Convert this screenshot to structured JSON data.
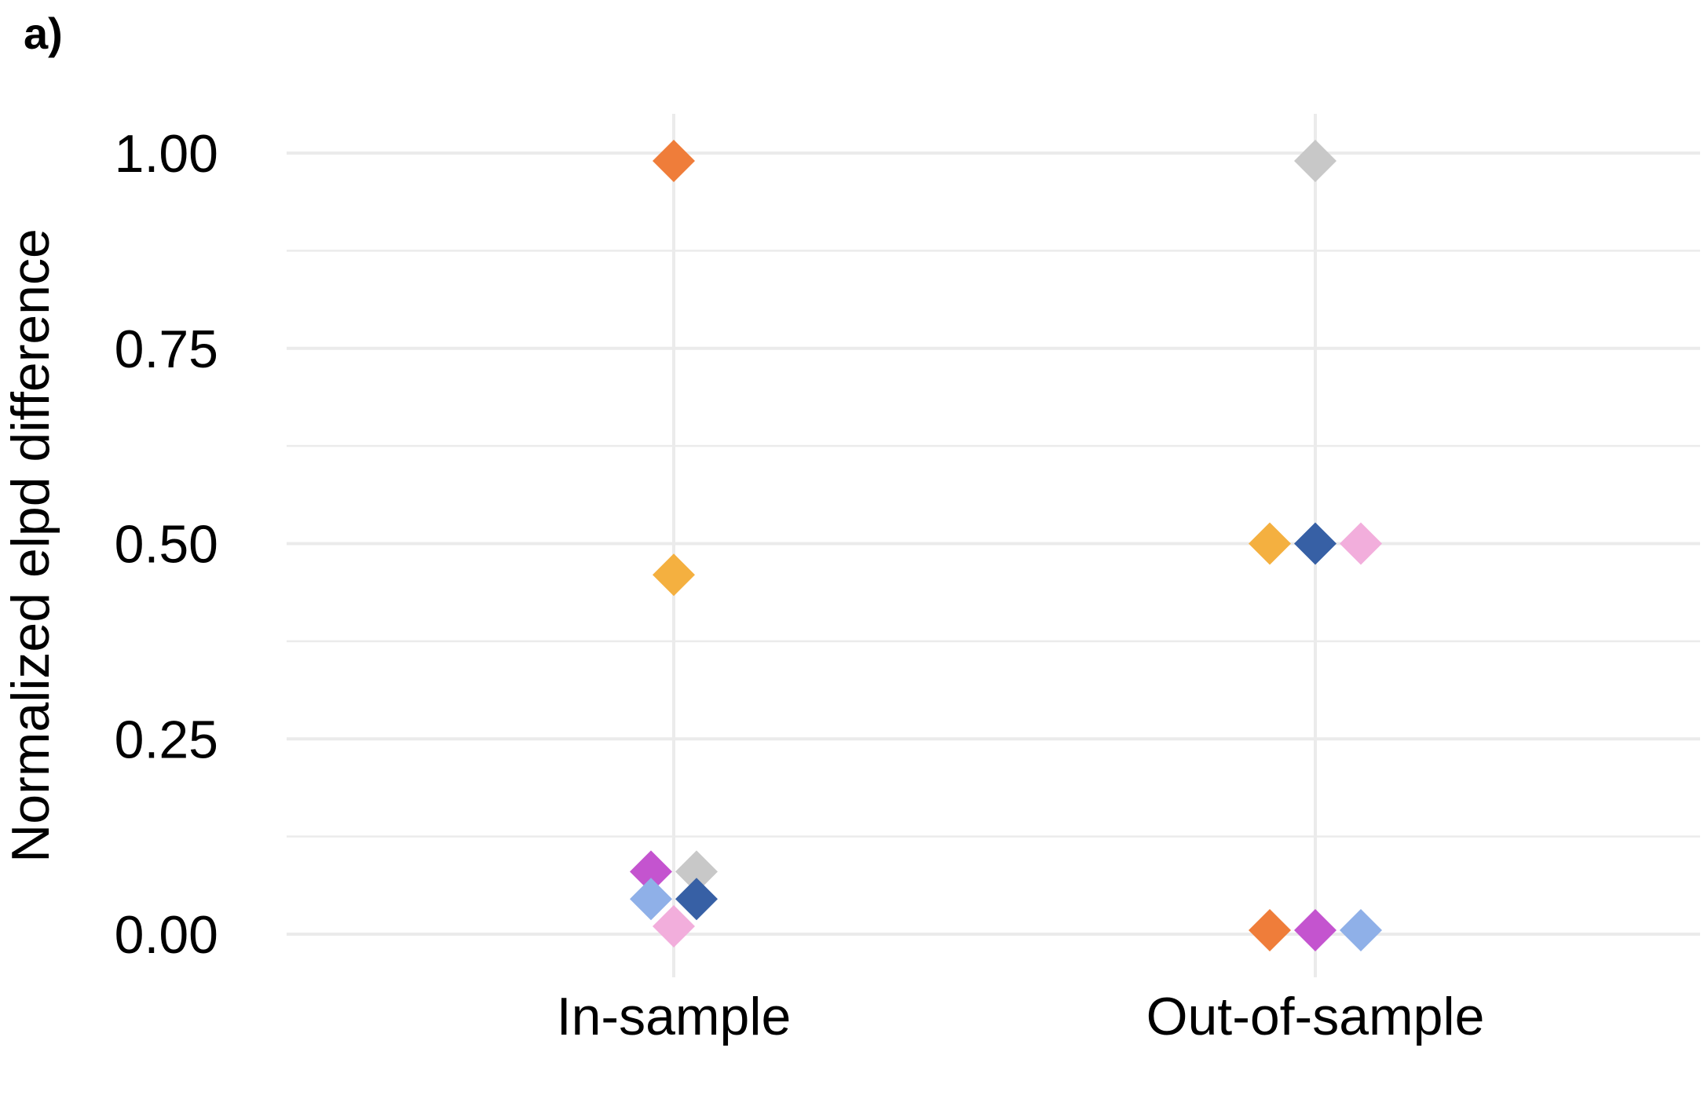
{
  "panel_label": "a)",
  "chart_data": {
    "type": "scatter",
    "title": "",
    "xlabel": "",
    "ylabel": "Normalized elpd difference",
    "categories": [
      "In-sample",
      "Out-of-sample"
    ],
    "ylim": [
      -0.04,
      1.05
    ],
    "y_ticks": [
      "0.00",
      "0.25",
      "0.50",
      "0.75",
      "1.00"
    ],
    "grid": true,
    "marker": "diamond",
    "points": [
      {
        "category": "In-sample",
        "y": 0.99,
        "color": "#EF7D3A",
        "offset": 0
      },
      {
        "category": "In-sample",
        "y": 0.46,
        "color": "#F4B040",
        "offset": 0
      },
      {
        "category": "In-sample",
        "y": 0.08,
        "color": "#C454CF",
        "offset": -1
      },
      {
        "category": "In-sample",
        "y": 0.08,
        "color": "#C8C8C8",
        "offset": 1
      },
      {
        "category": "In-sample",
        "y": 0.045,
        "color": "#8FB0E8",
        "offset": -1
      },
      {
        "category": "In-sample",
        "y": 0.045,
        "color": "#3760A5",
        "offset": 1
      },
      {
        "category": "In-sample",
        "y": 0.01,
        "color": "#F2AEDC",
        "offset": 0
      },
      {
        "category": "Out-of-sample",
        "y": 0.99,
        "color": "#C8C8C8",
        "offset": 0
      },
      {
        "category": "Out-of-sample",
        "y": 0.5,
        "color": "#F4B040",
        "offset": -2
      },
      {
        "category": "Out-of-sample",
        "y": 0.5,
        "color": "#3760A5",
        "offset": 0
      },
      {
        "category": "Out-of-sample",
        "y": 0.5,
        "color": "#F2AEDC",
        "offset": 2
      },
      {
        "category": "Out-of-sample",
        "y": 0.005,
        "color": "#EF7D3A",
        "offset": -2
      },
      {
        "category": "Out-of-sample",
        "y": 0.005,
        "color": "#C454CF",
        "offset": 0
      },
      {
        "category": "Out-of-sample",
        "y": 0.005,
        "color": "#8FB0E8",
        "offset": 2
      }
    ]
  }
}
